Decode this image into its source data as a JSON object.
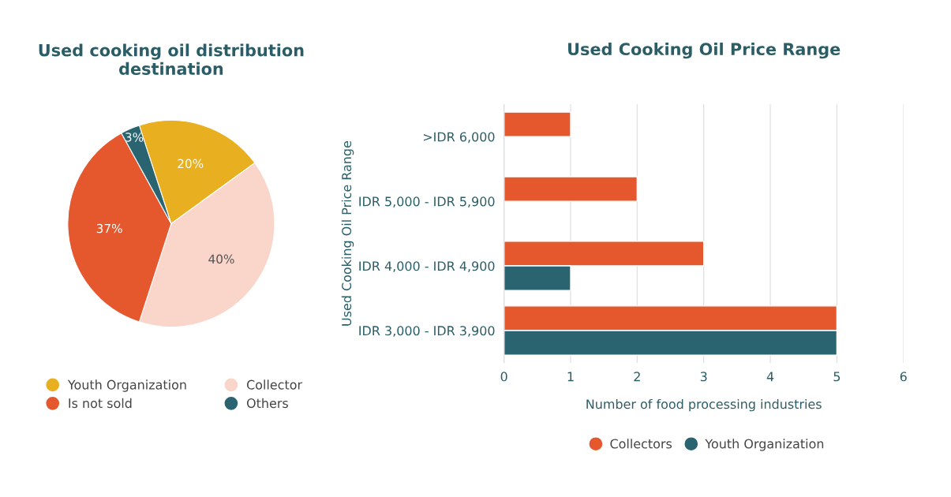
{
  "chart_data": [
    {
      "type": "pie",
      "title": "Used cooking oil distribution\ndestination",
      "categories": [
        "Youth Organization",
        "Collector",
        "Is not sold",
        "Others"
      ],
      "values": [
        20,
        40,
        37,
        3
      ],
      "colors": [
        "#e8b020",
        "#f9d5ca",
        "#e5582e",
        "#2a6470"
      ],
      "value_labels": [
        "20%",
        "40%",
        "37%",
        "3%"
      ],
      "legend": "bottom"
    },
    {
      "type": "bar",
      "orientation": "horizontal",
      "title": "Used Cooking Oil Price Range",
      "xlabel": "Number of food processing industries",
      "ylabel": "Used Cooking Oil Price Range",
      "categories": [
        ">IDR 6,000",
        "IDR 5,000 - IDR 5,900",
        "IDR 4,000 - IDR 4,900",
        "IDR 3,000 - IDR 3,900"
      ],
      "series": [
        {
          "name": "Collectors",
          "color": "#e5582e",
          "values": [
            1,
            2,
            3,
            5
          ]
        },
        {
          "name": "Youth Organization",
          "color": "#2a6470",
          "values": [
            null,
            null,
            1,
            5
          ]
        }
      ],
      "xlim": [
        0,
        6
      ],
      "xticks": [
        0,
        1,
        2,
        3,
        4,
        5,
        6
      ],
      "grid": "x",
      "legend": "bottom"
    }
  ]
}
